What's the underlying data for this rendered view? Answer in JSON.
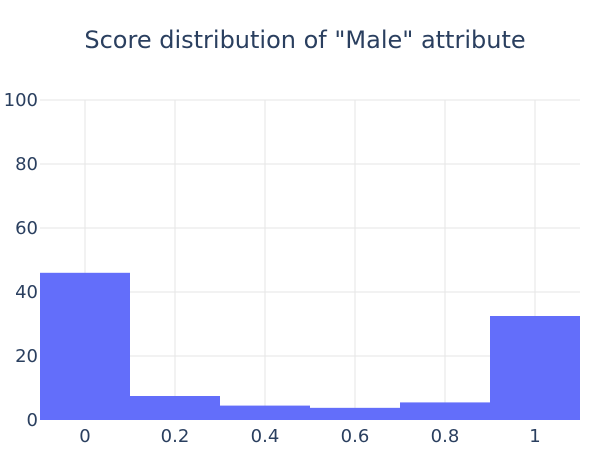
{
  "chart_data": {
    "type": "bar",
    "title": "Score distribution of \"Male\" attribute",
    "xlabel": "",
    "ylabel": "",
    "bins": [
      {
        "x0": -0.1,
        "x1": 0.1,
        "value": 46
      },
      {
        "x0": 0.1,
        "x1": 0.3,
        "value": 7.5
      },
      {
        "x0": 0.3,
        "x1": 0.5,
        "value": 4.5
      },
      {
        "x0": 0.5,
        "x1": 0.7,
        "value": 3.8
      },
      {
        "x0": 0.7,
        "x1": 0.9,
        "value": 5.5
      },
      {
        "x0": 0.9,
        "x1": 1.1,
        "value": 32.5
      }
    ],
    "xlim": [
      -0.1,
      1.1
    ],
    "ylim": [
      0,
      100
    ],
    "x_ticks": [
      0,
      0.2,
      0.4,
      0.6,
      0.8,
      1
    ],
    "x_tick_labels": [
      "0",
      "0.2",
      "0.4",
      "0.6",
      "0.8",
      "1"
    ],
    "y_ticks": [
      0,
      20,
      40,
      60,
      80,
      100
    ],
    "y_tick_labels": [
      "0",
      "20",
      "40",
      "60",
      "80",
      "100"
    ],
    "grid": true,
    "bar_color": "#636efa",
    "grid_color": "#e5e5e5",
    "text_color": "#2a3f5f"
  }
}
